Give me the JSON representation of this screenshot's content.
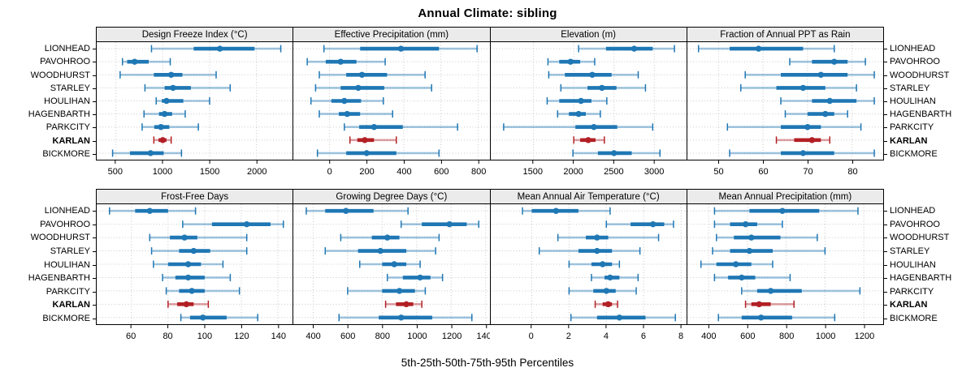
{
  "title": "Annual Climate: sibling",
  "caption": "5th-25th-50th-75th-95th Percentiles",
  "sites": [
    "LIONHEAD",
    "PAVOHROO",
    "WOODHURST",
    "STARLEY",
    "HOULIHAN",
    "HAGENBARTH",
    "PARKCITY",
    "KARLAN",
    "BICKMORE"
  ],
  "highlight_site": "KARLAN",
  "percentile_labels": [
    "5th",
    "25th",
    "50th",
    "75th",
    "95th"
  ],
  "colors": {
    "series": "#1f77b4",
    "highlight": "#b22025",
    "strip_bg": "#ebebeb",
    "grid": "#c9c9c9",
    "border": "#000000"
  },
  "chart_data": {
    "type": "interval-dot-trellis",
    "note": "each site maps to [p5,p25,p50,p75,p95]",
    "grid": "dotted",
    "panels": [
      {
        "title": "Design Freeze Index (°C)",
        "xlim": [
          295,
          2385
        ],
        "ticks": [
          500,
          1000,
          1500,
          2000
        ],
        "values": {
          "LIONHEAD": [
            880,
            1330,
            1610,
            1980,
            2260
          ],
          "PAVOHROO": [
            570,
            620,
            700,
            850,
            1080
          ],
          "WOODHURST": [
            545,
            905,
            1090,
            1210,
            1570
          ],
          "STARLEY": [
            810,
            1020,
            1110,
            1300,
            1720
          ],
          "HOULIHAN": [
            930,
            990,
            1040,
            1220,
            1500
          ],
          "HAGENBARTH": [
            800,
            960,
            1020,
            1100,
            1240
          ],
          "PARKCITY": [
            780,
            910,
            980,
            1070,
            1380
          ],
          "KARLAN": [
            905,
            955,
            1000,
            1040,
            1090
          ],
          "BICKMORE": [
            465,
            650,
            870,
            1010,
            1200
          ]
        }
      },
      {
        "title": "Effective Precipitation (mm)",
        "xlim": [
          -195,
          860
        ],
        "ticks": [
          0,
          200,
          400,
          600,
          800
        ],
        "values": {
          "LIONHEAD": [
            -30,
            165,
            385,
            590,
            795
          ],
          "PAVOHROO": [
            -120,
            -20,
            60,
            145,
            300
          ],
          "WOODHURST": [
            -55,
            90,
            175,
            310,
            515
          ],
          "STARLEY": [
            -75,
            60,
            155,
            295,
            550
          ],
          "HOULIHAN": [
            -100,
            10,
            80,
            170,
            290
          ],
          "HAGENBARTH": [
            -55,
            50,
            95,
            165,
            340
          ],
          "PARKCITY": [
            80,
            160,
            240,
            395,
            690
          ],
          "KARLAN": [
            110,
            150,
            190,
            240,
            360
          ],
          "BICKMORE": [
            -65,
            90,
            200,
            360,
            590
          ]
        }
      },
      {
        "title": "Elevation (m)",
        "xlim": [
          970,
          3400
        ],
        "ticks": [
          1500,
          2000,
          2500,
          3000
        ],
        "values": {
          "LIONHEAD": [
            2060,
            2400,
            2750,
            2980,
            3250
          ],
          "PAVOHROO": [
            1680,
            1820,
            1960,
            2080,
            2260
          ],
          "WOODHURST": [
            1690,
            1890,
            2230,
            2470,
            2800
          ],
          "STARLEY": [
            1840,
            2170,
            2350,
            2530,
            2890
          ],
          "HOULIHAN": [
            1670,
            1820,
            2090,
            2220,
            2410
          ],
          "HAGENBARTH": [
            1800,
            1940,
            2060,
            2150,
            2330
          ],
          "PARKCITY": [
            1130,
            2020,
            2250,
            2540,
            2980
          ],
          "KARLAN": [
            2000,
            2080,
            2180,
            2270,
            2380
          ],
          "BICKMORE": [
            1990,
            2300,
            2500,
            2720,
            3070
          ]
        }
      },
      {
        "title": "Fraction of Annual PPT as Rain",
        "xlim": [
          43,
          87
        ],
        "ticks": [
          50,
          60,
          70,
          80
        ],
        "values": {
          "LIONHEAD": [
            45.5,
            52.5,
            59,
            69,
            76
          ],
          "PAVOHROO": [
            66,
            71,
            76,
            79,
            83
          ],
          "WOODHURST": [
            56,
            64,
            73,
            79,
            85
          ],
          "STARLEY": [
            55,
            63,
            69,
            74,
            81
          ],
          "HOULIHAN": [
            64,
            71,
            75,
            81,
            85
          ],
          "HAGENBARTH": [
            65,
            70,
            74,
            76,
            79
          ],
          "PARKCITY": [
            52,
            64,
            70,
            73,
            82
          ],
          "KARLAN": [
            63,
            67,
            71,
            73,
            75
          ],
          "BICKMORE": [
            52.5,
            64,
            69,
            76,
            85
          ]
        }
      },
      {
        "title": "Frost-Free Days",
        "xlim": [
          41,
          148
        ],
        "ticks": [
          60,
          80,
          100,
          120,
          140
        ],
        "values": {
          "LIONHEAD": [
            48,
            62,
            70,
            80,
            95
          ],
          "PAVOHROO": [
            88,
            104,
            123,
            136,
            143
          ],
          "WOODHURST": [
            70,
            81,
            89,
            96,
            123
          ],
          "STARLEY": [
            71,
            86,
            94,
            103,
            123
          ],
          "HOULIHAN": [
            72,
            80,
            91,
            98,
            110
          ],
          "HAGENBARTH": [
            77,
            84,
            91,
            100,
            114
          ],
          "PARKCITY": [
            79,
            86,
            93,
            100,
            119
          ],
          "KARLAN": [
            80,
            85,
            90,
            94,
            102
          ],
          "BICKMORE": [
            87,
            92,
            99,
            112,
            129
          ]
        }
      },
      {
        "title": "Growing Degree Days (°C)",
        "xlim": [
          285,
          1420
        ],
        "ticks": [
          400,
          600,
          800,
          1000,
          1200,
          1400
        ],
        "values": {
          "LIONHEAD": [
            360,
            470,
            590,
            750,
            950
          ],
          "PAVOHROO": [
            910,
            1030,
            1190,
            1290,
            1360
          ],
          "WOODHURST": [
            560,
            740,
            830,
            900,
            1130
          ],
          "STARLEY": [
            470,
            660,
            790,
            940,
            1110
          ],
          "HOULIHAN": [
            670,
            800,
            870,
            940,
            1020
          ],
          "HAGENBARTH": [
            830,
            920,
            1020,
            1080,
            1150
          ],
          "PARKCITY": [
            600,
            800,
            900,
            990,
            1050
          ],
          "KARLAN": [
            820,
            880,
            940,
            980,
            1030
          ],
          "BICKMORE": [
            550,
            780,
            910,
            1090,
            1320
          ]
        }
      },
      {
        "title": "Mean Annual Air Temperature (°C)",
        "xlim": [
          -2.2,
          8.3
        ],
        "ticks": [
          0,
          2,
          4,
          6,
          8
        ],
        "values": {
          "LIONHEAD": [
            -0.5,
            0.0,
            1.3,
            2.5,
            4.2
          ],
          "PAVOHROO": [
            4.0,
            5.3,
            6.5,
            7.1,
            7.6
          ],
          "WOODHURST": [
            1.4,
            2.9,
            3.5,
            4.1,
            6.8
          ],
          "STARLEY": [
            0.4,
            2.5,
            3.5,
            4.3,
            5.8
          ],
          "HOULIHAN": [
            2.0,
            3.2,
            3.8,
            4.3,
            4.7
          ],
          "HAGENBARTH": [
            3.2,
            3.9,
            4.2,
            4.7,
            5.7
          ],
          "PARKCITY": [
            2.0,
            3.3,
            4.0,
            4.5,
            5.6
          ],
          "KARLAN": [
            3.4,
            3.8,
            4.1,
            4.3,
            4.6
          ],
          "BICKMORE": [
            2.1,
            3.5,
            4.7,
            6.1,
            7.7
          ]
        }
      },
      {
        "title": "Mean Annual Precipitation (mm)",
        "xlim": [
          290,
          1300
        ],
        "ticks": [
          400,
          600,
          800,
          1000,
          1200
        ],
        "values": {
          "LIONHEAD": [
            430,
            610,
            780,
            970,
            1170
          ],
          "PAVOHROO": [
            430,
            510,
            590,
            650,
            780
          ],
          "WOODHURST": [
            440,
            530,
            620,
            770,
            960
          ],
          "STARLEY": [
            420,
            510,
            610,
            730,
            1000
          ],
          "HOULIHAN": [
            360,
            440,
            540,
            620,
            730
          ],
          "HAGENBARTH": [
            430,
            500,
            570,
            640,
            820
          ],
          "PARKCITY": [
            570,
            650,
            720,
            880,
            1180
          ],
          "KARLAN": [
            590,
            620,
            660,
            720,
            840
          ],
          "BICKMORE": [
            450,
            570,
            670,
            830,
            1050
          ]
        }
      }
    ]
  }
}
